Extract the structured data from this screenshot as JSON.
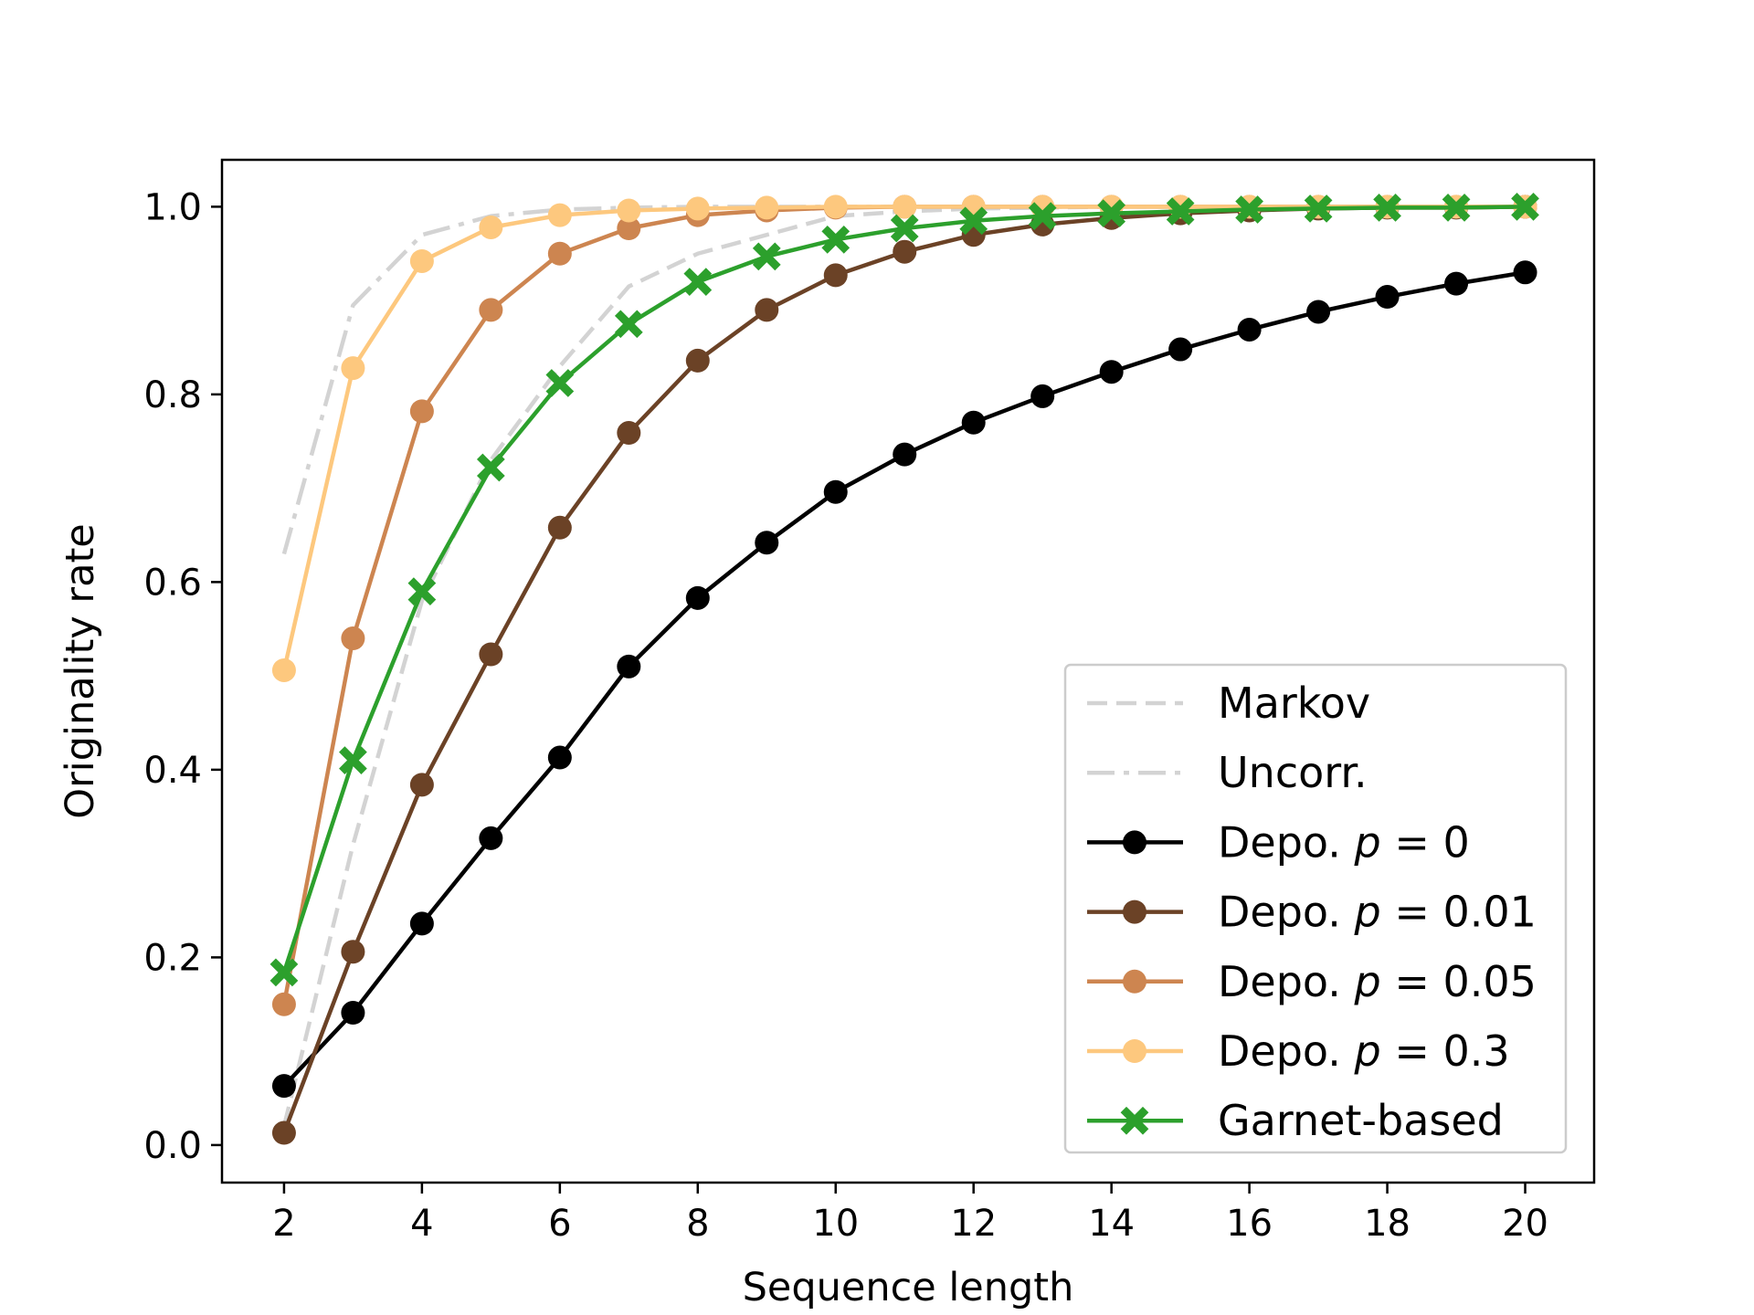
{
  "chart_data": {
    "type": "line",
    "xlabel": "Sequence length",
    "ylabel": "Originality rate",
    "xlim": [
      1.1,
      21.0
    ],
    "ylim": [
      -0.04,
      1.05
    ],
    "xticks": [
      2,
      4,
      6,
      8,
      10,
      12,
      14,
      16,
      18,
      20
    ],
    "yticks": [
      0.0,
      0.2,
      0.4,
      0.6,
      0.8,
      1.0
    ],
    "xtick_labels": [
      "2",
      "4",
      "6",
      "8",
      "10",
      "12",
      "14",
      "16",
      "18",
      "20"
    ],
    "ytick_labels": [
      "0.0",
      "0.2",
      "0.4",
      "0.6",
      "0.8",
      "1.0"
    ],
    "grid": false,
    "legend_position": "lower-right",
    "x": [
      2,
      3,
      4,
      5,
      6,
      7,
      8,
      9,
      10,
      11,
      12,
      13,
      14,
      15,
      16,
      17,
      18,
      19,
      20
    ],
    "series": [
      {
        "name": "Markov",
        "color": "#d3d3d3",
        "line_style": "dashed",
        "marker": "none",
        "values": [
          0.02,
          0.32,
          0.58,
          0.73,
          0.83,
          0.915,
          0.95,
          0.97,
          0.99,
          0.995,
          0.998,
          0.999,
          1.0,
          1.0,
          1.0,
          1.0,
          1.0,
          1.0,
          1.0
        ]
      },
      {
        "name": "Uncorr.",
        "color": "#d3d3d3",
        "line_style": "dashdot",
        "marker": "none",
        "values": [
          0.63,
          0.895,
          0.97,
          0.99,
          0.997,
          0.999,
          1.0,
          1.0,
          1.0,
          1.0,
          1.0,
          1.0,
          1.0,
          1.0,
          1.0,
          1.0,
          1.0,
          1.0,
          1.0
        ]
      },
      {
        "name_prefix": "Depo. ",
        "name_var": "p",
        "name_suffix": " = 0",
        "color": "#000000",
        "line_style": "solid",
        "marker": "circle",
        "values": [
          0.063,
          0.141,
          0.236,
          0.327,
          0.413,
          0.51,
          0.583,
          0.642,
          0.696,
          0.736,
          0.77,
          0.798,
          0.824,
          0.848,
          0.869,
          0.888,
          0.904,
          0.918,
          0.93
        ]
      },
      {
        "name_prefix": "Depo. ",
        "name_var": "p",
        "name_suffix": " = 0.01",
        "color": "#6b4226",
        "line_style": "solid",
        "marker": "circle",
        "values": [
          0.013,
          0.206,
          0.384,
          0.523,
          0.658,
          0.759,
          0.836,
          0.89,
          0.927,
          0.952,
          0.97,
          0.981,
          0.988,
          0.993,
          0.996,
          0.998,
          0.999,
          0.999,
          1.0
        ]
      },
      {
        "name_prefix": "Depo. ",
        "name_var": "p",
        "name_suffix": " = 0.05",
        "color": "#cd8550",
        "line_style": "solid",
        "marker": "circle",
        "values": [
          0.15,
          0.54,
          0.782,
          0.89,
          0.95,
          0.977,
          0.991,
          0.996,
          0.999,
          1.0,
          1.0,
          1.0,
          1.0,
          1.0,
          1.0,
          1.0,
          1.0,
          1.0,
          1.0
        ]
      },
      {
        "name_prefix": "Depo. ",
        "name_var": "p",
        "name_suffix": " = 0.3",
        "color": "#fdc87e",
        "line_style": "solid",
        "marker": "circle",
        "values": [
          0.506,
          0.828,
          0.942,
          0.978,
          0.991,
          0.996,
          0.998,
          0.999,
          1.0,
          1.0,
          1.0,
          1.0,
          1.0,
          1.0,
          1.0,
          1.0,
          1.0,
          1.0,
          1.0
        ]
      },
      {
        "name": "Garnet-based",
        "color": "#2ca02c",
        "line_style": "solid",
        "marker": "x",
        "values": [
          0.184,
          0.41,
          0.59,
          0.722,
          0.812,
          0.875,
          0.92,
          0.947,
          0.965,
          0.977,
          0.985,
          0.99,
          0.993,
          0.995,
          0.997,
          0.998,
          0.999,
          0.999,
          1.0
        ]
      }
    ]
  }
}
